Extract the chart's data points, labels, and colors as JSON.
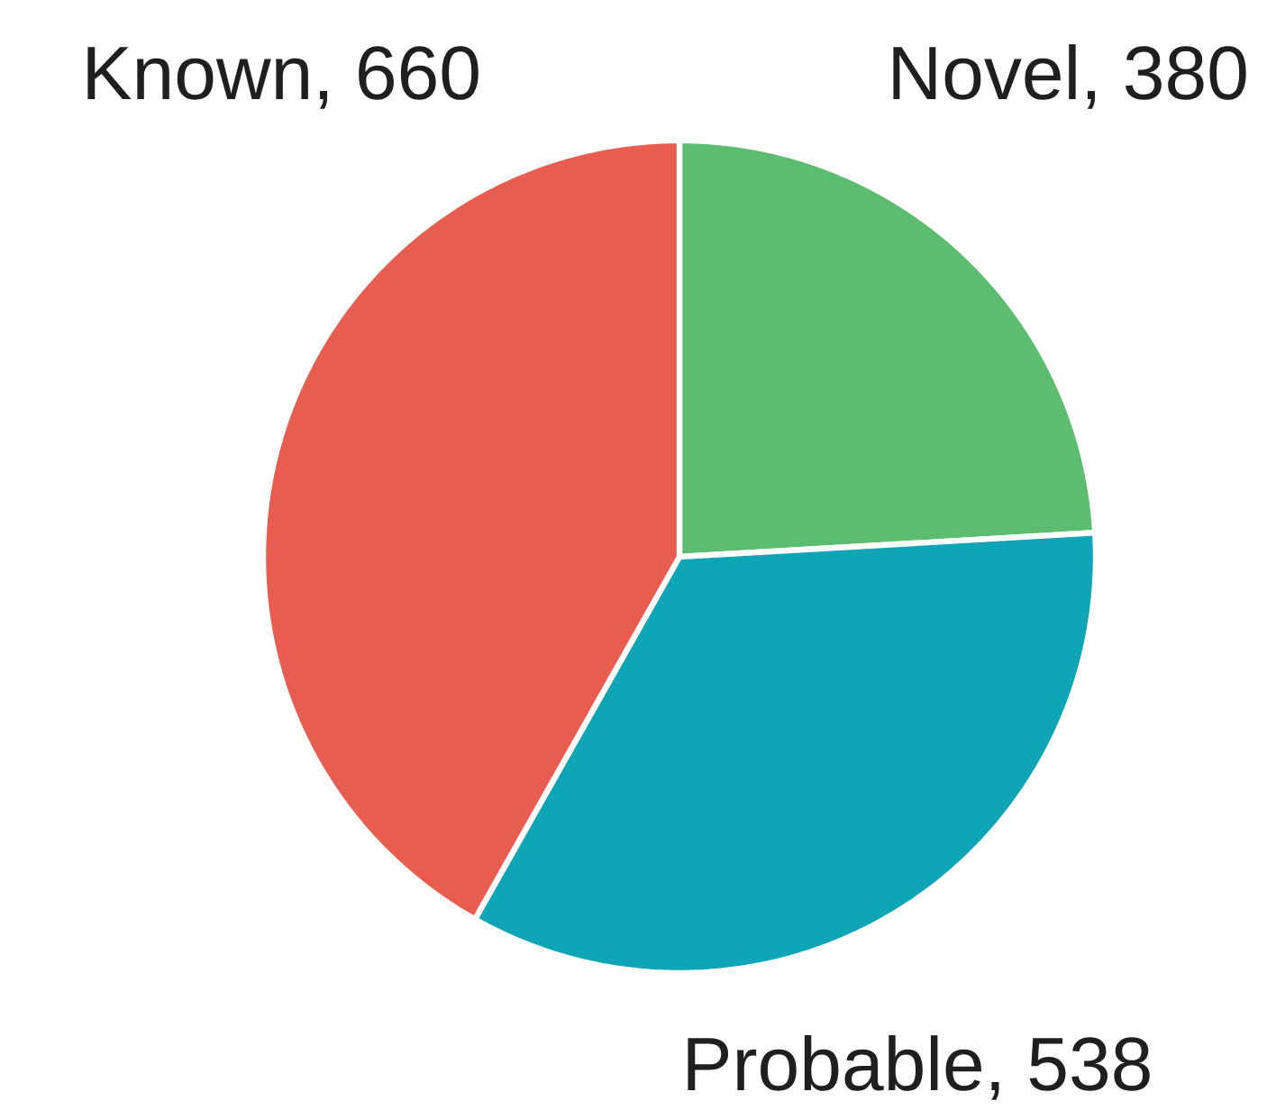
{
  "chart_data": {
    "type": "pie",
    "categories": [
      "Novel, 380",
      "Probable, 538",
      "Known, 660"
    ],
    "values": [
      380,
      538,
      660
    ],
    "colors": [
      "#5cbd70",
      "#0ea5b7",
      "#e85d50"
    ]
  }
}
